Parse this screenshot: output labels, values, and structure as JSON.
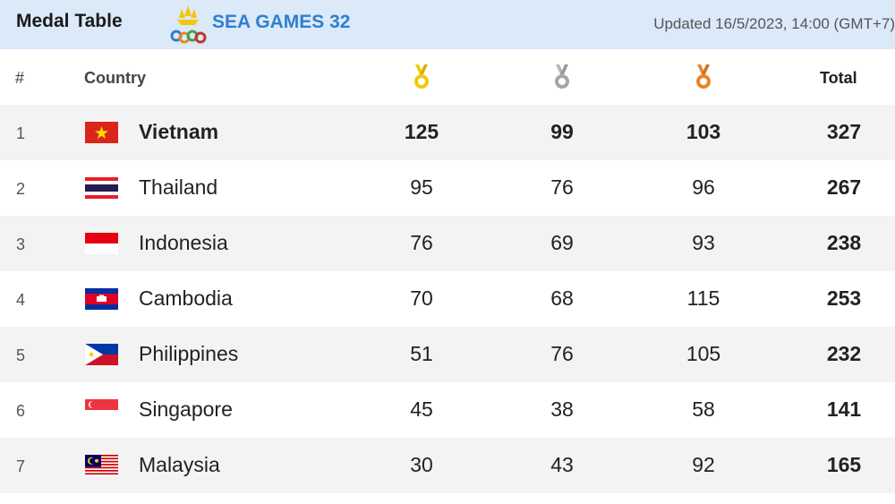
{
  "header": {
    "title": "Medal Table",
    "brand": "SEA GAMES 32",
    "updated": "Updated 16/5/2023, 14:00 (GMT+7)"
  },
  "columns": {
    "rank": "#",
    "country": "Country",
    "gold_icon": "gold-medal-icon",
    "silver_icon": "silver-medal-icon",
    "bronze_icon": "bronze-medal-icon",
    "total": "Total"
  },
  "colors": {
    "header_bg": "#dbe9f8",
    "brand": "#2f7fd0",
    "gold": "#f2c80f",
    "silver": "#a6a6a6",
    "bronze": "#e8862a",
    "row_alt": "#f3f3f3"
  },
  "rows": [
    {
      "rank": "1",
      "country": "Vietnam",
      "flag": "vietnam-flag",
      "gold": "125",
      "silver": "99",
      "bronze": "103",
      "total": "327"
    },
    {
      "rank": "2",
      "country": "Thailand",
      "flag": "thailand-flag",
      "gold": "95",
      "silver": "76",
      "bronze": "96",
      "total": "267"
    },
    {
      "rank": "3",
      "country": "Indonesia",
      "flag": "indonesia-flag",
      "gold": "76",
      "silver": "69",
      "bronze": "93",
      "total": "238"
    },
    {
      "rank": "4",
      "country": "Cambodia",
      "flag": "cambodia-flag",
      "gold": "70",
      "silver": "68",
      "bronze": "115",
      "total": "253"
    },
    {
      "rank": "5",
      "country": "Philippines",
      "flag": "philippines-flag",
      "gold": "51",
      "silver": "76",
      "bronze": "105",
      "total": "232"
    },
    {
      "rank": "6",
      "country": "Singapore",
      "flag": "singapore-flag",
      "gold": "45",
      "silver": "38",
      "bronze": "58",
      "total": "141"
    },
    {
      "rank": "7",
      "country": "Malaysia",
      "flag": "malaysia-flag",
      "gold": "30",
      "silver": "43",
      "bronze": "92",
      "total": "165"
    }
  ]
}
